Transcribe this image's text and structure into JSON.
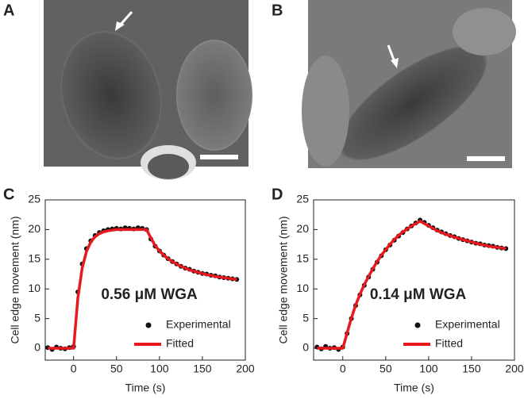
{
  "panels": [
    {
      "label": "A"
    },
    {
      "label": "B"
    }
  ],
  "chart_data": [
    {
      "type": "line",
      "label": "C",
      "annotation": "0.56 μM WGA",
      "x_label": "Time (s)",
      "y_label": "Cell edge movement (nm)",
      "xlim": [
        -33,
        200
      ],
      "ylim": [
        -2,
        25
      ],
      "xticks": [
        0,
        50,
        100,
        150,
        200
      ],
      "yticks": [
        0,
        5,
        10,
        15,
        20,
        25
      ],
      "grid": false,
      "legend": "lower right",
      "x": [
        -30,
        -25,
        -20,
        -15,
        -10,
        -5,
        0,
        5,
        10,
        15,
        20,
        25,
        30,
        35,
        40,
        45,
        50,
        55,
        60,
        65,
        70,
        75,
        80,
        85,
        90,
        95,
        100,
        105,
        110,
        115,
        120,
        125,
        130,
        135,
        140,
        145,
        150,
        155,
        160,
        165,
        170,
        175,
        180,
        185,
        190
      ],
      "series": [
        {
          "name": "Experimental",
          "type": "scatter",
          "color": "#111111",
          "values": [
            0.1,
            -0.2,
            0.2,
            0,
            -0.1,
            0.1,
            0.3,
            9.5,
            14.2,
            16.8,
            18.1,
            19.0,
            19.5,
            19.8,
            20.0,
            20.1,
            20.2,
            20.1,
            20.3,
            20.2,
            20.1,
            20.3,
            20.2,
            20.0,
            18.4,
            17.2,
            16.4,
            15.7,
            15.1,
            14.6,
            14.2,
            13.8,
            13.5,
            13.3,
            13.0,
            12.8,
            12.6,
            12.5,
            12.3,
            12.2,
            12.0,
            11.9,
            11.8,
            11.7,
            11.6
          ]
        },
        {
          "name": "Fitted",
          "type": "line",
          "color": "#e8191e",
          "values": [
            0,
            0,
            0,
            0,
            0,
            0,
            0,
            8.5,
            13.5,
            16.3,
            17.9,
            18.8,
            19.3,
            19.6,
            19.8,
            19.9,
            20.0,
            20.0,
            20.0,
            20.0,
            20.0,
            20.0,
            20.0,
            20.0,
            18.6,
            17.3,
            16.4,
            15.7,
            15.1,
            14.6,
            14.2,
            13.8,
            13.5,
            13.2,
            13.0,
            12.8,
            12.6,
            12.4,
            12.3,
            12.1,
            12.0,
            11.9,
            11.8,
            11.7,
            11.6
          ]
        }
      ]
    },
    {
      "type": "line",
      "label": "D",
      "annotation": "0.14 μM WGA",
      "x_label": "Time (s)",
      "y_label": "Cell edge movement (nm)",
      "xlim": [
        -34,
        200
      ],
      "ylim": [
        -2,
        25
      ],
      "xticks": [
        0,
        50,
        100,
        150,
        200
      ],
      "yticks": [
        0,
        5,
        10,
        15,
        20,
        25
      ],
      "grid": false,
      "legend": "lower right",
      "x": [
        -30,
        -25,
        -20,
        -15,
        -10,
        -5,
        0,
        5,
        10,
        15,
        20,
        25,
        30,
        35,
        40,
        45,
        50,
        55,
        60,
        65,
        70,
        75,
        80,
        85,
        90,
        95,
        100,
        105,
        110,
        115,
        120,
        125,
        130,
        135,
        140,
        145,
        150,
        155,
        160,
        165,
        170,
        175,
        180,
        185,
        190
      ],
      "series": [
        {
          "name": "Experimental",
          "type": "scatter",
          "color": "#111111",
          "values": [
            0.2,
            -0.1,
            0.3,
            0,
            0.1,
            -0.2,
            0.2,
            2.5,
            5.0,
            7.2,
            9.0,
            10.6,
            12.0,
            13.3,
            14.5,
            15.6,
            16.6,
            17.4,
            18.2,
            18.9,
            19.5,
            20.1,
            20.6,
            21.1,
            21.6,
            21.2,
            20.7,
            20.3,
            19.9,
            19.6,
            19.3,
            19.0,
            18.8,
            18.5,
            18.3,
            18.1,
            17.9,
            17.7,
            17.6,
            17.4,
            17.3,
            17.2,
            17.0,
            16.9,
            16.8
          ]
        },
        {
          "name": "Fitted",
          "type": "line",
          "color": "#e8191e",
          "values": [
            0,
            0,
            0,
            0,
            0,
            0,
            0,
            2.6,
            5.1,
            7.3,
            9.1,
            10.7,
            12.1,
            13.4,
            14.6,
            15.7,
            16.6,
            17.5,
            18.3,
            19.0,
            19.6,
            20.1,
            20.6,
            21.0,
            21.4,
            21.0,
            20.6,
            20.2,
            19.8,
            19.5,
            19.2,
            19.0,
            18.7,
            18.5,
            18.3,
            18.1,
            17.9,
            17.7,
            17.5,
            17.4,
            17.2,
            17.1,
            17.0,
            16.9,
            16.8
          ]
        }
      ]
    }
  ]
}
